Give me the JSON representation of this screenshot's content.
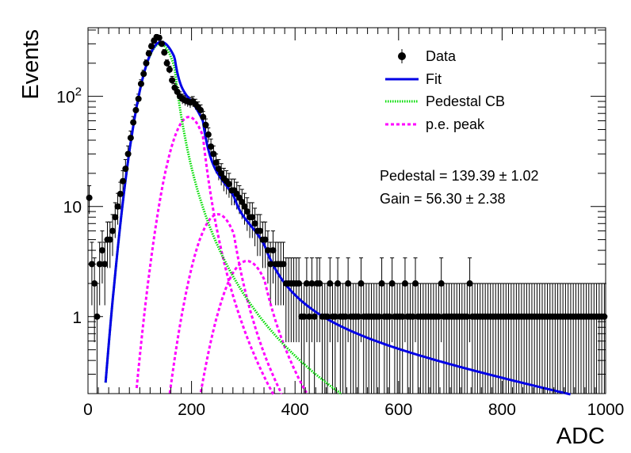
{
  "chart_data": {
    "type": "scatter",
    "xlabel": "ADC",
    "ylabel": "Events",
    "xlim": [
      0,
      1000
    ],
    "ylim": [
      0.2,
      420
    ],
    "yscale": "log",
    "x_ticks": [
      0,
      200,
      400,
      600,
      800,
      1000
    ],
    "x_tick_labels": [
      "0",
      "200",
      "400",
      "600",
      "800",
      "1000"
    ],
    "y_ticks": [
      1,
      10,
      100
    ],
    "y_tick_labels": [
      "1",
      "10",
      "10^2"
    ],
    "legend_position": "top-right",
    "legend": [
      {
        "label": "Data",
        "style": "marker",
        "color": "#000000"
      },
      {
        "label": "Fit",
        "style": "solid",
        "color": "#0000e6"
      },
      {
        "label": "Pedestal CB",
        "style": "dotted",
        "color": "#00dd00"
      },
      {
        "label": "p.e. peak",
        "style": "dashed",
        "color": "#ff00ff"
      }
    ],
    "annotations": [
      {
        "text_key": "pedestal"
      },
      {
        "text_key": "gain"
      }
    ],
    "pedestal_text": "Pedestal = 139.39 ± 1.02",
    "gain_text": "Gain = 56.30 ± 2.38",
    "data_points": {
      "x": [
        0,
        5,
        10,
        15,
        20,
        25,
        30,
        35,
        40,
        45,
        50,
        55,
        60,
        65,
        70,
        75,
        80,
        85,
        90,
        95,
        100,
        105,
        110,
        115,
        120,
        125,
        130,
        135,
        140,
        145,
        150,
        155,
        160,
        165,
        170,
        175,
        180,
        185,
        190,
        195,
        200,
        205,
        210,
        215,
        220,
        225,
        230,
        235,
        240,
        245,
        250,
        255,
        260,
        265,
        270,
        275,
        280,
        285,
        290,
        295,
        300,
        305,
        310,
        315,
        320,
        325,
        330,
        335,
        340,
        345,
        350,
        355,
        360,
        365,
        370,
        375,
        380,
        385,
        390,
        395,
        400,
        405,
        410,
        415,
        420,
        425,
        430,
        435,
        440,
        445,
        450,
        455,
        460,
        465,
        470,
        475,
        480,
        485,
        490,
        495,
        500,
        505,
        510,
        515,
        520,
        525,
        530,
        535,
        540,
        545,
        550,
        555,
        560,
        565,
        570,
        575,
        580,
        585,
        590,
        595,
        600,
        605,
        610,
        615,
        620,
        625,
        630,
        635,
        640,
        645,
        650,
        655,
        660,
        665,
        670,
        675,
        680,
        685,
        690,
        695,
        700,
        705,
        710,
        715,
        720,
        725,
        730,
        735,
        740,
        745,
        750,
        755,
        760,
        765,
        770,
        775,
        780,
        785,
        790,
        795,
        800,
        805,
        810,
        815,
        820,
        825,
        830,
        835,
        840,
        845,
        850,
        855,
        860,
        865,
        870,
        875,
        880,
        885,
        890,
        895,
        900,
        905,
        910,
        915,
        920,
        925,
        930,
        935,
        940,
        945,
        950,
        955,
        960,
        965,
        970,
        975,
        980,
        985,
        990,
        995
      ],
      "y": [
        12,
        3,
        2,
        1,
        3,
        4,
        3,
        5,
        5,
        6,
        8,
        10,
        13,
        17,
        22,
        30,
        42,
        58,
        75,
        95,
        130,
        160,
        200,
        245,
        285,
        320,
        345,
        340,
        300,
        250,
        200,
        175,
        140,
        120,
        110,
        100,
        95,
        92,
        90,
        88,
        90,
        85,
        80,
        75,
        65,
        55,
        45,
        35,
        30,
        25,
        22,
        20,
        18,
        17,
        16,
        14,
        14,
        13,
        12,
        11,
        10,
        9,
        8,
        8,
        7,
        6,
        6,
        5,
        5,
        4,
        3,
        4,
        3,
        3,
        3,
        3,
        2,
        2,
        2,
        2,
        2,
        2,
        1,
        1,
        2,
        1,
        2,
        1,
        2,
        2,
        1,
        1,
        1,
        2,
        1,
        1,
        2,
        1,
        1,
        1,
        2,
        1,
        1,
        1,
        1,
        2,
        1,
        1,
        1,
        1,
        1,
        1,
        1,
        2,
        1,
        1,
        1,
        2,
        1,
        1,
        1,
        1,
        2,
        1,
        1,
        1,
        2,
        1,
        1,
        1,
        1,
        1,
        1,
        1,
        1,
        1,
        2,
        1,
        1,
        1,
        1,
        1,
        1,
        1,
        1,
        1,
        1,
        2,
        1,
        1,
        1,
        1,
        1,
        1,
        1,
        1,
        1,
        1,
        1,
        1,
        1,
        1,
        1,
        1,
        1,
        1,
        1,
        1,
        1,
        1,
        1,
        1,
        1,
        1,
        1,
        1,
        1,
        1,
        1,
        1,
        1,
        1,
        1,
        1,
        1,
        1,
        1,
        1,
        1,
        1,
        1,
        1,
        1,
        1,
        1,
        1,
        1,
        1,
        1,
        1
      ]
    },
    "fit": {
      "pedestal_mean": 139.39,
      "pedestal_sigma": 28,
      "pedestal_amplitude": 300,
      "gain": 56.3,
      "pe_peaks": [
        {
          "mean": 195,
          "amplitude": 65
        },
        {
          "mean": 251,
          "amplitude": 8.5
        },
        {
          "mean": 307,
          "amplitude": 3.2
        }
      ]
    }
  }
}
